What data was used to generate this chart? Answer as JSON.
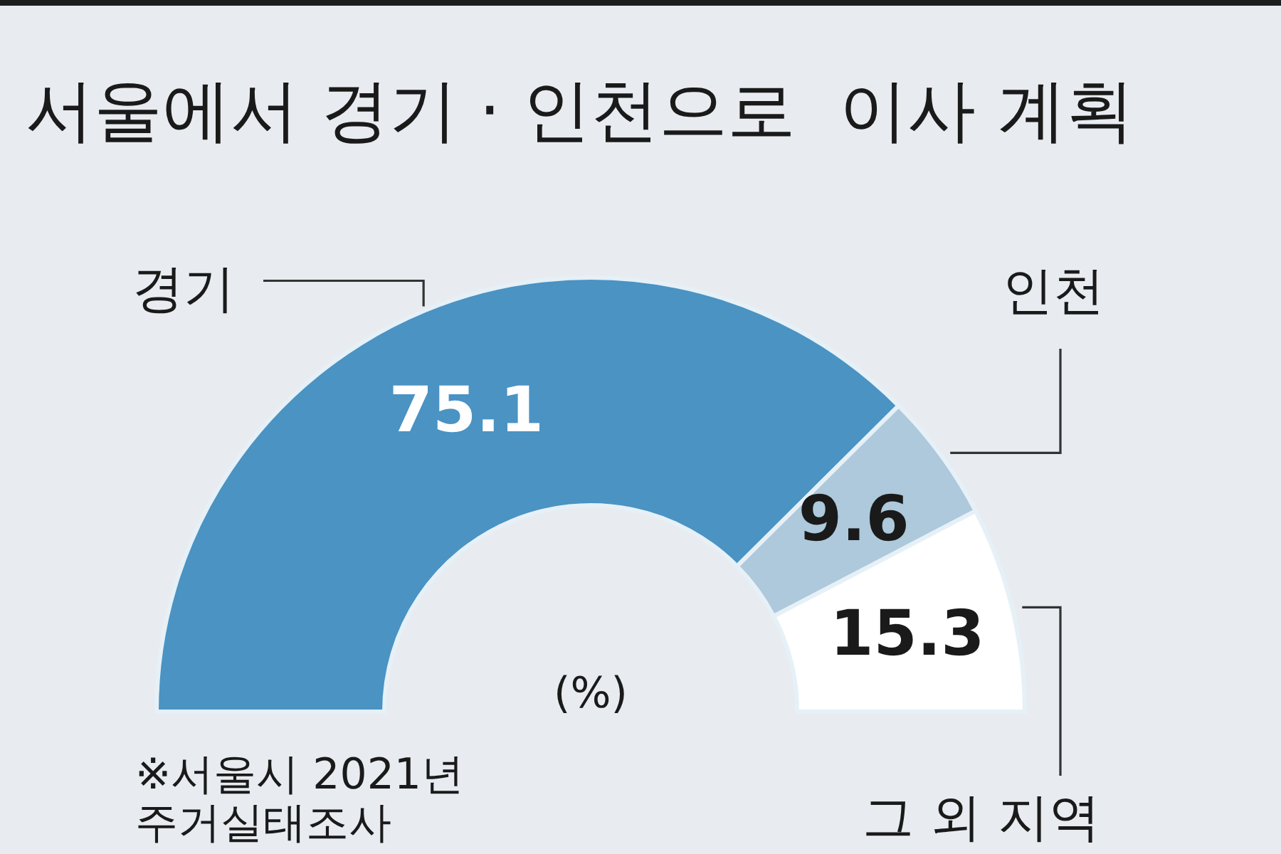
{
  "chart_data": {
    "type": "donut",
    "title": "서울에서 경기 · 인천으로  이사 계획",
    "categories": [
      "경기",
      "인천",
      "그 외 지역"
    ],
    "values": [
      75.1,
      9.6,
      15.3
    ],
    "colors": [
      "#4a93c3",
      "#adc9db",
      "#ffffff"
    ],
    "data_labels": true,
    "annotations": [
      "(%)",
      "※서울시 2021년 주거실태조사"
    ]
  }
}
